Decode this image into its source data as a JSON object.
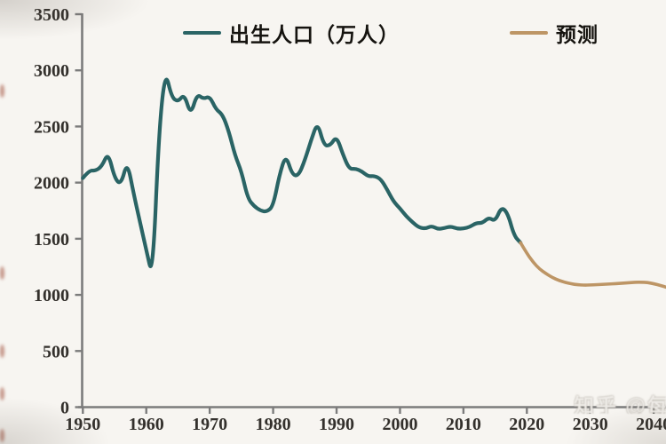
{
  "watermark": {
    "text": "知乎 @每"
  },
  "colors": {
    "background": "#f7f5f1",
    "axis": "#7c7c7c",
    "tick_text": "#33302c",
    "birth_line": "#2a6465",
    "forecast_line": "#bd9565"
  },
  "chart_data": {
    "type": "line",
    "title": "",
    "xlabel": "",
    "ylabel": "",
    "xlim": [
      1950,
      2042
    ],
    "ylim": [
      0,
      3500
    ],
    "grid": false,
    "legend_position": "top",
    "x_ticks": [
      1950,
      1960,
      1970,
      1980,
      1990,
      2000,
      2010,
      2020,
      2030,
      2040
    ],
    "y_ticks": [
      0,
      500,
      1000,
      1500,
      2000,
      2500,
      3000,
      3500
    ],
    "series": [
      {
        "name": "出生人口（万人）",
        "color": "#2a6465",
        "x": [
          1950,
          1951,
          1952,
          1953,
          1954,
          1955,
          1956,
          1957,
          1958,
          1959,
          1960,
          1961,
          1962,
          1963,
          1964,
          1965,
          1966,
          1967,
          1968,
          1969,
          1970,
          1971,
          1972,
          1973,
          1974,
          1975,
          1976,
          1977,
          1978,
          1979,
          1980,
          1981,
          1982,
          1983,
          1984,
          1985,
          1986,
          1987,
          1988,
          1989,
          1990,
          1991,
          1992,
          1993,
          1994,
          1995,
          1996,
          1997,
          1998,
          1999,
          2000,
          2001,
          2002,
          2003,
          2004,
          2005,
          2006,
          2007,
          2008,
          2009,
          2010,
          2011,
          2012,
          2013,
          2014,
          2015,
          2016,
          2017,
          2018,
          2019
        ],
        "values": [
          2040,
          2110,
          2105,
          2145,
          2270,
          2040,
          1980,
          2190,
          1905,
          1650,
          1400,
          1150,
          2460,
          3000,
          2760,
          2720,
          2790,
          2600,
          2790,
          2745,
          2770,
          2650,
          2610,
          2460,
          2240,
          2100,
          1860,
          1790,
          1750,
          1740,
          1790,
          2070,
          2250,
          2070,
          2060,
          2200,
          2380,
          2540,
          2330,
          2330,
          2415,
          2250,
          2120,
          2125,
          2100,
          2055,
          2060,
          2030,
          1935,
          1830,
          1770,
          1700,
          1645,
          1600,
          1590,
          1615,
          1585,
          1595,
          1610,
          1590,
          1590,
          1605,
          1640,
          1640,
          1690,
          1655,
          1785,
          1725,
          1525,
          1465
        ]
      },
      {
        "name": "预测",
        "color": "#bd9565",
        "x": [
          2019,
          2020,
          2021,
          2022,
          2023,
          2024,
          2025,
          2026,
          2027,
          2028,
          2029,
          2030,
          2031,
          2032,
          2033,
          2034,
          2035,
          2036,
          2037,
          2038,
          2039,
          2040,
          2041,
          2042
        ],
        "values": [
          1465,
          1370,
          1290,
          1230,
          1190,
          1155,
          1130,
          1112,
          1098,
          1090,
          1087,
          1088,
          1091,
          1094,
          1097,
          1100,
          1104,
          1108,
          1112,
          1113,
          1110,
          1100,
          1085,
          1068
        ]
      }
    ]
  }
}
